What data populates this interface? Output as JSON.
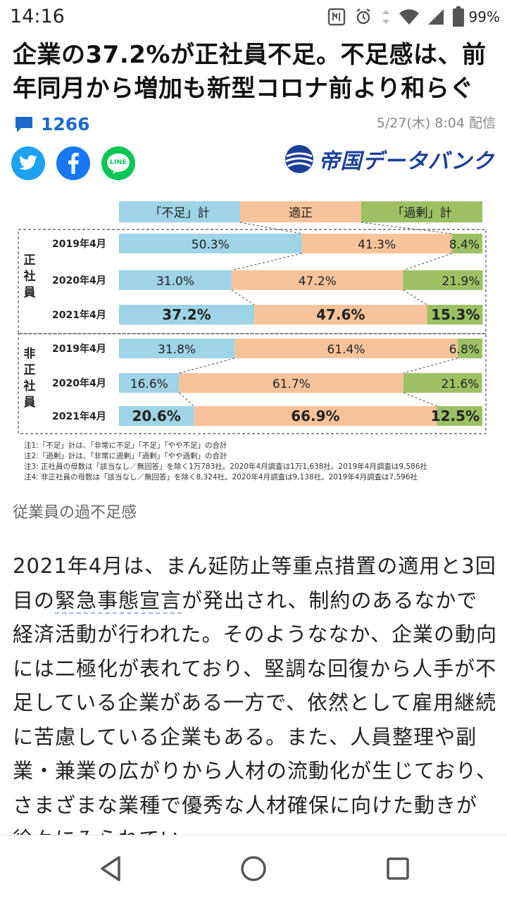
{
  "status": {
    "time": "14:16",
    "battery": "99%"
  },
  "article": {
    "headline": "企業の37.2%が正社員不足。不足感は、前年同月から増加も新型コロナ前より和らぐ",
    "comment_count": "1266",
    "published": "5/27(木) 8:04 配信",
    "source": "帝国データバンク",
    "caption": "従業員の過不足感",
    "body_pre": "2021年4月は、まん延防止等重点措置の適用と3回目の",
    "body_keyword": "緊急事態宣言",
    "body_post": "が発出され、制約のあるなかで経済活動が行われた。そのようななか、企業の動向には二極化が表れており、堅調な回復から人手が不足している企業がある一方で、依然として雇用継続に苦慮している企業もある。また、人員整理や副業・兼業の広がりから人材の流動化が生じており、さまざまな業種で優秀な人材確保に向けた動きが徐々にみられてい"
  },
  "share": {
    "line_label": "LINE",
    "icons": [
      "twitter-icon",
      "facebook-icon",
      "line-icon"
    ]
  },
  "colors": {
    "shortage": "#9fd3e6",
    "adequate": "#f7c39a",
    "surplus": "#9dc065",
    "accent": "#1b6ac9"
  },
  "chart_data": {
    "type": "bar",
    "stacked": true,
    "orientation": "horizontal",
    "legend": [
      "「不足」計",
      "適正",
      "「過剰」計"
    ],
    "groups": [
      {
        "name": "正社員",
        "label_chars": [
          "正",
          "社",
          "員"
        ]
      },
      {
        "name": "非正社員",
        "label_chars": [
          "非",
          "正",
          "社",
          "員"
        ]
      }
    ],
    "rows": [
      {
        "group": 0,
        "period": "2019年4月",
        "values": [
          50.3,
          41.3,
          8.4
        ],
        "labels": [
          "50.3%",
          "41.3%",
          "8.4%"
        ],
        "bold": false
      },
      {
        "group": 0,
        "period": "2020年4月",
        "values": [
          31.0,
          47.2,
          21.9
        ],
        "labels": [
          "31.0%",
          "47.2%",
          "21.9%"
        ],
        "bold": false
      },
      {
        "group": 0,
        "period": "2021年4月",
        "values": [
          37.2,
          47.6,
          15.3
        ],
        "labels": [
          "37.2%",
          "47.6%",
          "15.3%"
        ],
        "bold": true
      },
      {
        "group": 1,
        "period": "2019年4月",
        "values": [
          31.8,
          61.4,
          6.8
        ],
        "labels": [
          "31.8%",
          "61.4%",
          "6.8%"
        ],
        "bold": false
      },
      {
        "group": 1,
        "period": "2020年4月",
        "values": [
          16.6,
          61.7,
          21.6
        ],
        "labels": [
          "16.6%",
          "61.7%",
          "21.6%"
        ],
        "bold": false
      },
      {
        "group": 1,
        "period": "2021年4月",
        "values": [
          20.6,
          66.9,
          12.5
        ],
        "labels": [
          "20.6%",
          "66.9%",
          "12.5%"
        ],
        "bold": true
      }
    ],
    "xlim": [
      0,
      100
    ],
    "notes": [
      "注1:「不足」計は、「非常に不足」「不足」「やや不足」の合計",
      "注2:「過剰」計は、「非常に過剰」「過剰」「やや過剰」の合計",
      "注3: 正社員の母数は「該当なし／無回答」を除く1万783社。2020年4月調査は1万1,638社。2019年4月調査は9,586社",
      "注4: 非正社員の母数は「該当なし／無回答」を除く8,324社。2020年4月調査は9,138社。2019年4月調査は7,596社"
    ]
  }
}
